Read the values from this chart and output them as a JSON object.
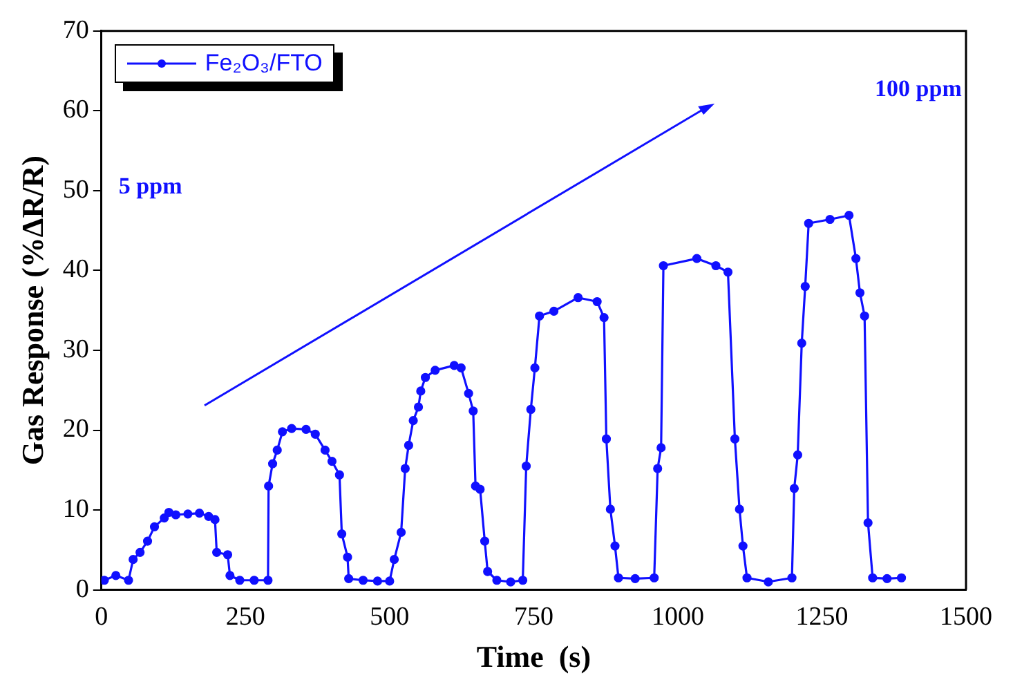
{
  "chart_data": {
    "type": "line",
    "xlabel": "Time  (s)",
    "ylabel": "Gas Response (%ΔR/R)",
    "xlim": [
      0,
      1500
    ],
    "xticks": [
      0,
      250,
      500,
      750,
      1000,
      1250,
      1500
    ],
    "ylim": [
      0,
      70
    ],
    "yticks": [
      0,
      10,
      20,
      30,
      40,
      50,
      60,
      70
    ],
    "grid": false,
    "legend": "top left",
    "marker": "circle",
    "line_style": "solid",
    "annotations": [
      "5 ppm",
      "100 ppm"
    ],
    "series": [
      {
        "name": "Fe₂O₃/FTO",
        "color": "#1010ff",
        "x": [
          5,
          25,
          47,
          55,
          67,
          80,
          92,
          109,
          117,
          129,
          150,
          170,
          186,
          197,
          200,
          219,
          223,
          240,
          265,
          289,
          290,
          297,
          305,
          314,
          330,
          355,
          371,
          388,
          400,
          413,
          417,
          427,
          429,
          454,
          479,
          500,
          508,
          520,
          527,
          533,
          541,
          550,
          554,
          562,
          579,
          612,
          624,
          637,
          645,
          649,
          657,
          665,
          670,
          686,
          710,
          731,
          737,
          745,
          752,
          760,
          785,
          827,
          860,
          872,
          876,
          883,
          891,
          897,
          926,
          959,
          965,
          971,
          975,
          1033,
          1066,
          1087,
          1099,
          1107,
          1113,
          1120,
          1157,
          1198,
          1202,
          1208,
          1215,
          1221,
          1227,
          1264,
          1297,
          1309,
          1316,
          1324,
          1330,
          1338,
          1363,
          1388
        ],
        "values": [
          1.2,
          1.8,
          1.2,
          3.8,
          4.7,
          6.1,
          7.9,
          9.0,
          9.7,
          9.4,
          9.5,
          9.6,
          9.2,
          8.8,
          4.7,
          4.4,
          1.8,
          1.2,
          1.2,
          1.2,
          13.0,
          15.8,
          17.5,
          19.8,
          20.2,
          20.1,
          19.5,
          17.5,
          16.1,
          14.4,
          7.0,
          4.1,
          1.4,
          1.2,
          1.1,
          1.1,
          3.8,
          7.2,
          15.2,
          18.1,
          21.2,
          22.9,
          24.9,
          26.6,
          27.5,
          28.1,
          27.8,
          24.6,
          22.4,
          13.0,
          12.6,
          6.1,
          2.3,
          1.2,
          1.0,
          1.2,
          15.5,
          22.6,
          27.8,
          34.3,
          34.9,
          36.6,
          36.1,
          34.1,
          18.9,
          10.1,
          5.5,
          1.5,
          1.4,
          1.5,
          15.2,
          17.8,
          40.6,
          41.5,
          40.6,
          39.8,
          18.9,
          10.1,
          5.5,
          1.5,
          1.0,
          1.5,
          12.7,
          16.9,
          30.9,
          38.0,
          45.9,
          46.4,
          46.9,
          41.5,
          37.2,
          34.3,
          8.4,
          1.5,
          1.4,
          1.5
        ]
      }
    ]
  }
}
